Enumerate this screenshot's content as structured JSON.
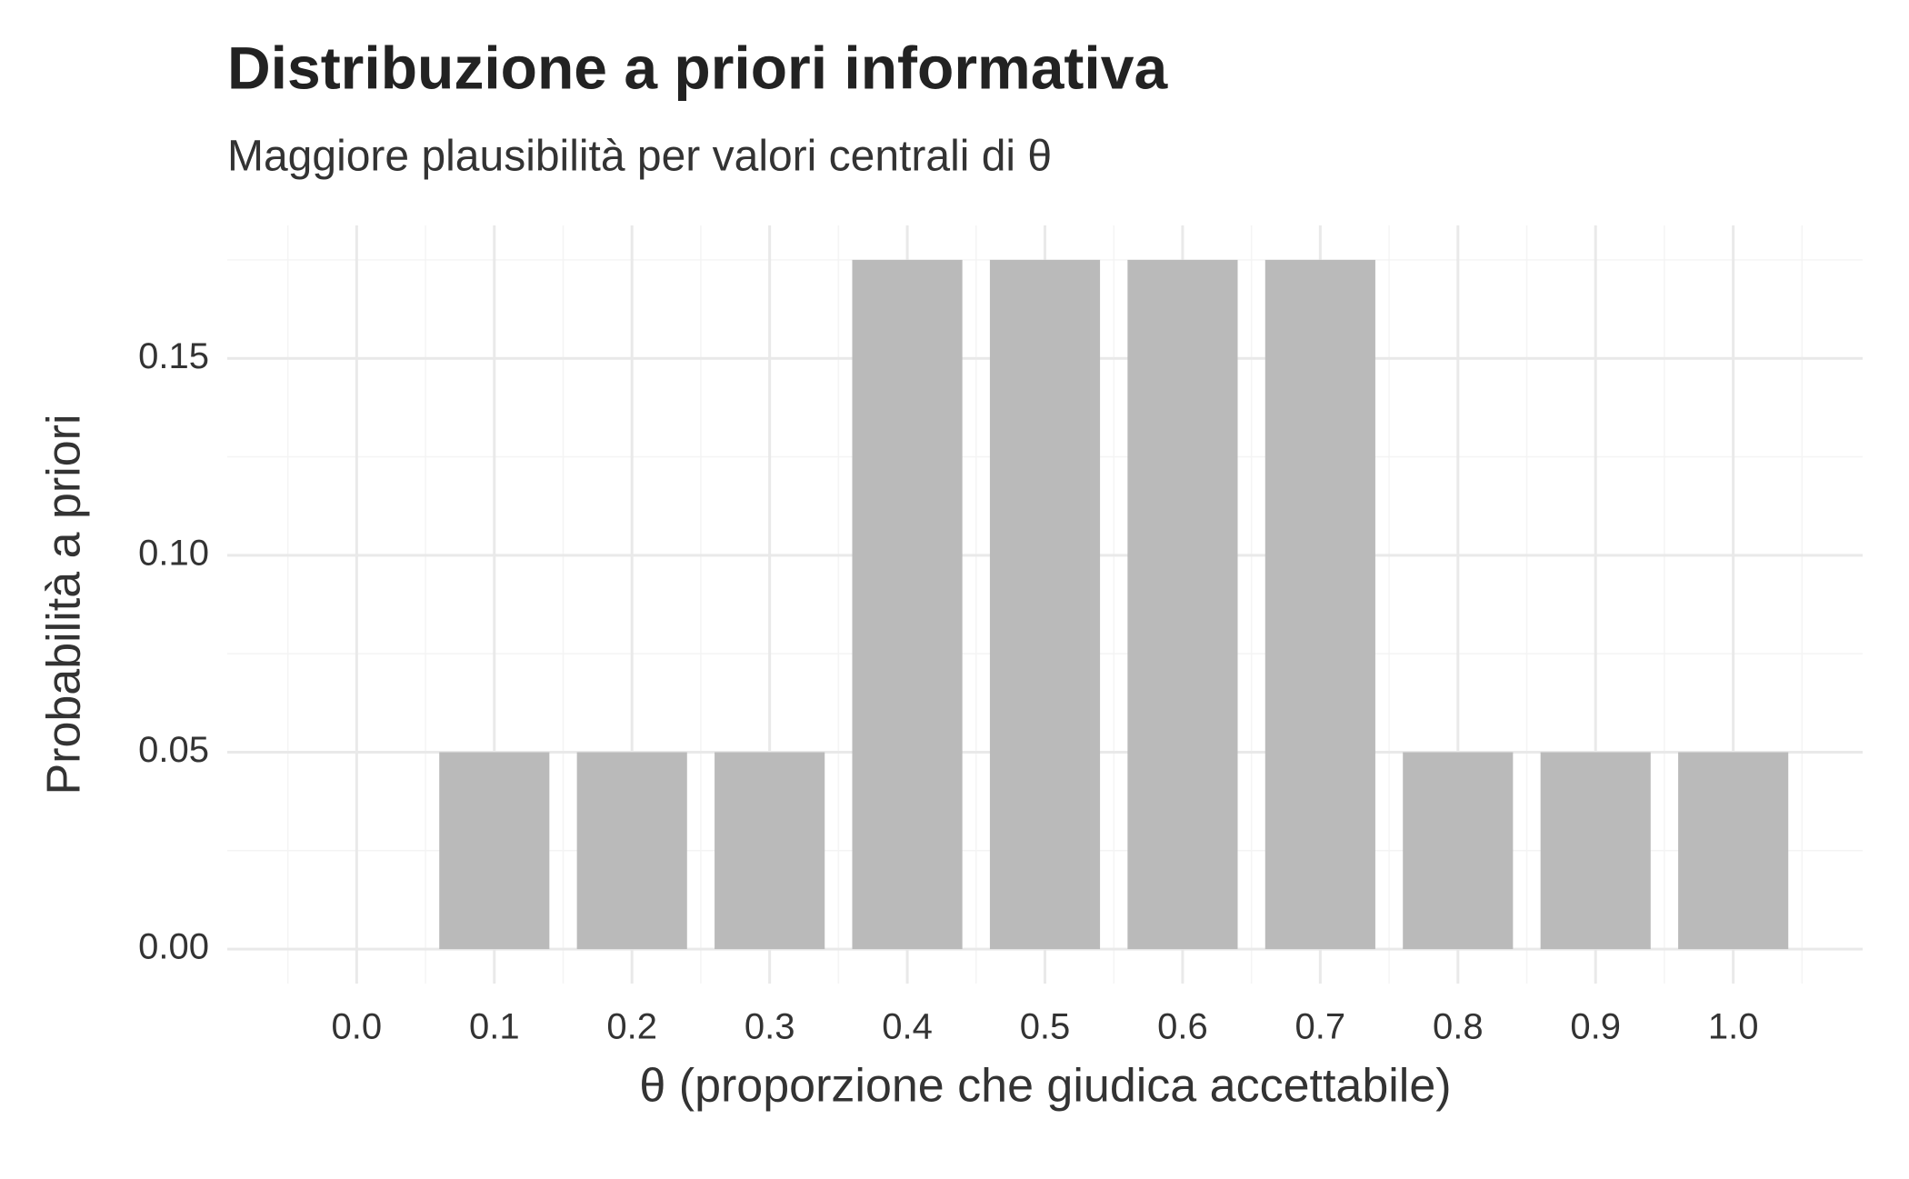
{
  "chart_data": {
    "type": "bar",
    "title": "Distribuzione a priori informativa",
    "subtitle": "Maggiore plausibilità per valori centrali di θ",
    "x_label": "θ (proporzione che giudica accettabile)",
    "y_label": "Probabilità a priori",
    "x": [
      0,
      0.1,
      0.2,
      0.3,
      0.4,
      0.5,
      0.6,
      0.7,
      0.8,
      0.9,
      1
    ],
    "values": [
      0,
      0.05,
      0.05,
      0.05,
      0.175,
      0.175,
      0.175,
      0.175,
      0.05,
      0.05,
      0.05
    ],
    "color": "#bababa",
    "xlim": [
      -0.094,
      1.094
    ],
    "xticks": [
      {
        "value": 0,
        "label": "0.0"
      },
      0.1,
      0.2,
      0.3,
      0.4,
      0.5,
      0.6,
      0.7,
      0.8,
      0.9,
      {
        "value": 1,
        "label": "1.0"
      }
    ],
    "ylim": [
      -0.00875,
      0.18375
    ],
    "yticks": [
      {
        "value": 0,
        "label": "0.00"
      },
      {
        "value": 0.05,
        "label": "0.05"
      },
      {
        "value": 0.1,
        "label": "0.10"
      },
      {
        "value": 0.15,
        "label": "0.15"
      }
    ],
    "grid": true
  }
}
